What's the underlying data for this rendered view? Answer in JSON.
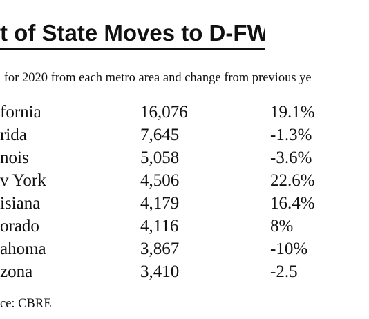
{
  "title": "t of State Moves to D-FW",
  "subtitle": "l for 2020 from each metro area and change from previous ye",
  "rows": [
    {
      "state": "fornia",
      "moves": "16,076",
      "change": "19.1%"
    },
    {
      "state": "rida",
      "moves": "7,645",
      "change": "-1.3%"
    },
    {
      "state": "nois",
      "moves": "5,058",
      "change": "-3.6%"
    },
    {
      "state": "v York",
      "moves": "4,506",
      "change": "22.6%"
    },
    {
      "state": "isiana",
      "moves": "4,179",
      "change": "16.4%"
    },
    {
      "state": "orado",
      "moves": "4,116",
      "change": "8%"
    },
    {
      "state": "ahoma",
      "moves": "3,867",
      "change": "-10%"
    },
    {
      "state": "zona",
      "moves": "3,410",
      "change": "-2.5"
    }
  ],
  "source": "ce: CBRE"
}
